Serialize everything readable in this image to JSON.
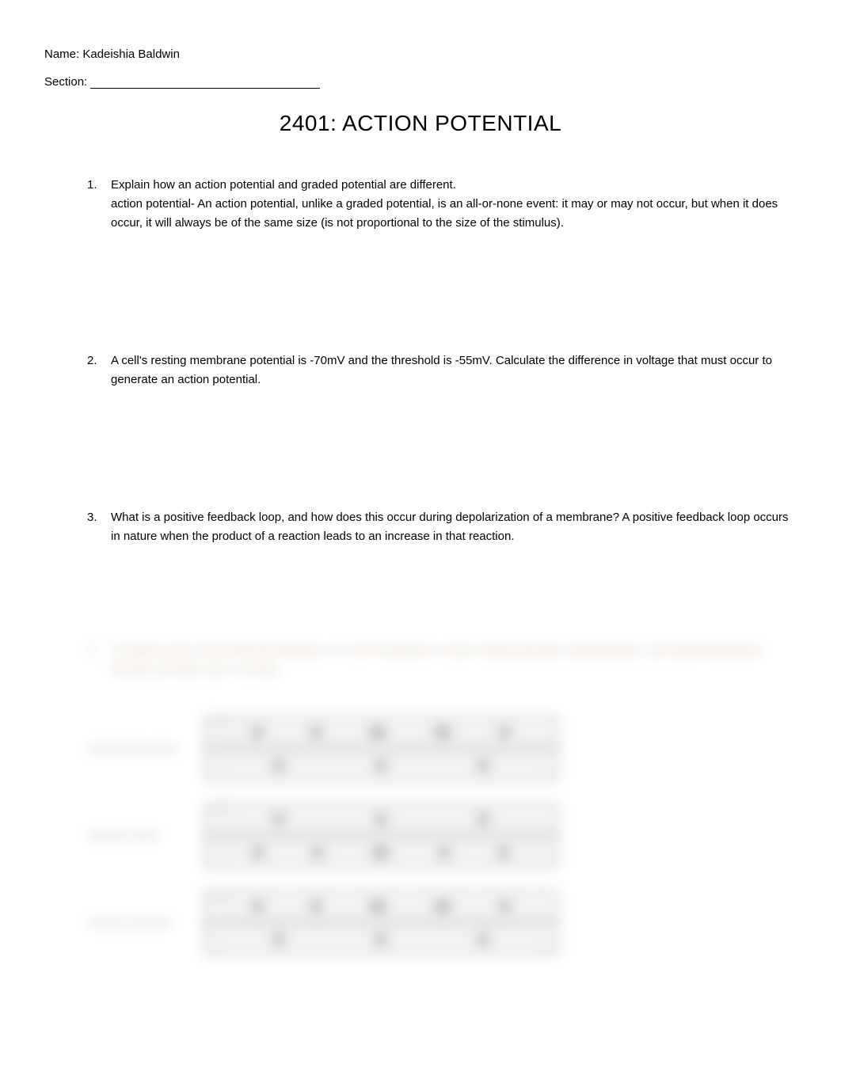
{
  "header": {
    "name_label": "Name:",
    "name_value": "Kadeishia Baldwin",
    "section_label": "Section:"
  },
  "title": "2401:  ACTION POTENTIAL",
  "questions": [
    {
      "number": "1.",
      "prompt": "Explain how an action potential and graded potential are different.",
      "answer": "action potential- An action potential, unlike a graded potential, is an all-or-none event: it may or may not occur, but when it does occur, it will always be of the same size (is not proportional to the size of the stimulus)."
    },
    {
      "number": "2.",
      "prompt": "A cell's resting membrane potential is -70mV and the threshold is -55mV.  Calculate the difference in voltage that must occur to generate an action potential.",
      "answer": ""
    },
    {
      "number": "3.",
      "prompt": "What is a positive feedback loop, and how does this occur during depolarization of a membrane? A positive feedback loop occurs in nature when the product of a reaction leads to an increase in that reaction.",
      "answer": ""
    }
  ],
  "blurred": {
    "q4_number": "4.",
    "q4_text": "Complete each of the following diagrams of a cell membrane to show resting potential, depolarization, and hyperpolarization.  Identify and label each correctly.",
    "labels": {
      "row1": "Hyperpolarization",
      "row2": "depolarization",
      "row3": "resting potential"
    }
  },
  "colors": {
    "background": "#ffffff",
    "text": "#000000",
    "blurred_text": "#a88860",
    "diagram_bg": "#e8e8e8",
    "diagram_border": "#999999",
    "diagram_divider": "#777777",
    "dot_color": "#666666"
  },
  "typography": {
    "body_fontsize": 15,
    "title_fontsize": 28,
    "font_family": "Segoe UI"
  }
}
